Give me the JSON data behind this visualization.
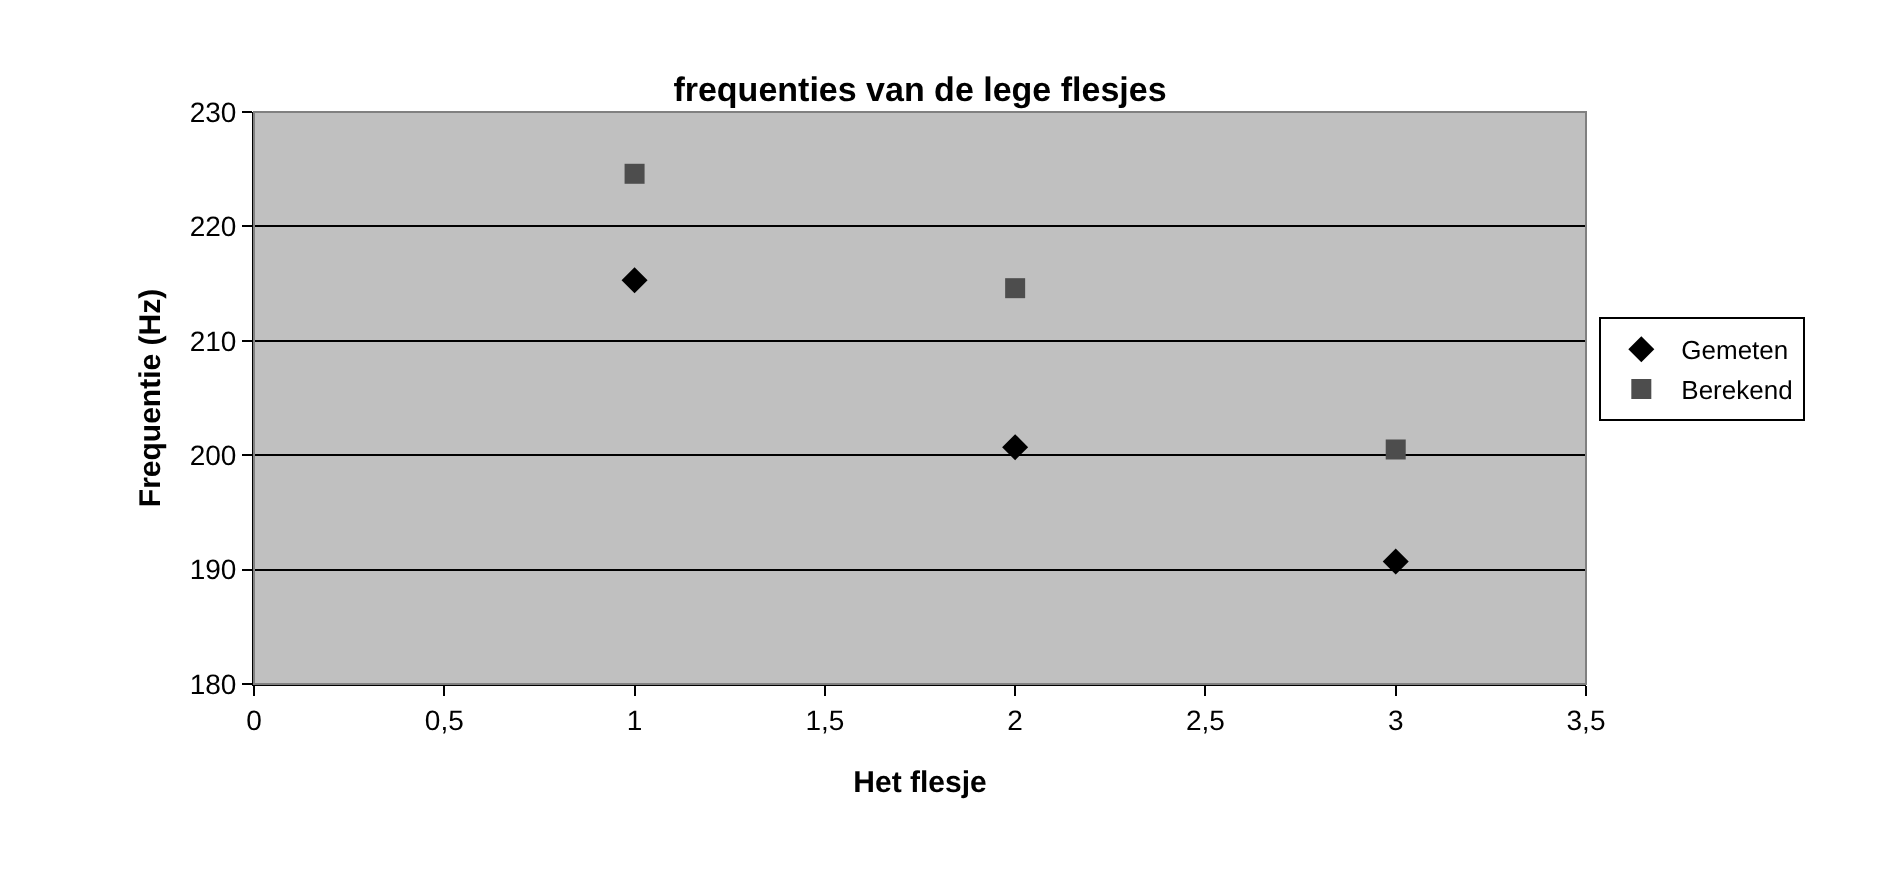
{
  "chart_data": {
    "type": "scatter",
    "title": "frequenties van de lege flesjes",
    "xlabel": "Het flesje",
    "ylabel": "Frequentie (Hz)",
    "xlim": [
      0,
      3.5
    ],
    "xticks": [
      0,
      {
        "value": 0.5,
        "label": "0,5"
      },
      1,
      {
        "value": 1.5,
        "label": "1,5"
      },
      2,
      {
        "value": 2.5,
        "label": "2,5"
      },
      3,
      {
        "value": 3.5,
        "label": "3,5"
      }
    ],
    "ylim": [
      180,
      230
    ],
    "yticks": [
      180,
      190,
      200,
      210,
      220,
      230
    ],
    "grid": "y",
    "legend": "right",
    "series": [
      {
        "name": "Gemeten",
        "color": "#000000",
        "marker": "diamond",
        "x": [
          1,
          2,
          3
        ],
        "values": [
          215.3,
          200.7,
          190.7
        ]
      },
      {
        "name": "Berekend",
        "color": "#4d4d4d",
        "marker": "square",
        "x": [
          1,
          2,
          3
        ],
        "values": [
          224.6,
          214.6,
          200.5
        ]
      }
    ]
  }
}
